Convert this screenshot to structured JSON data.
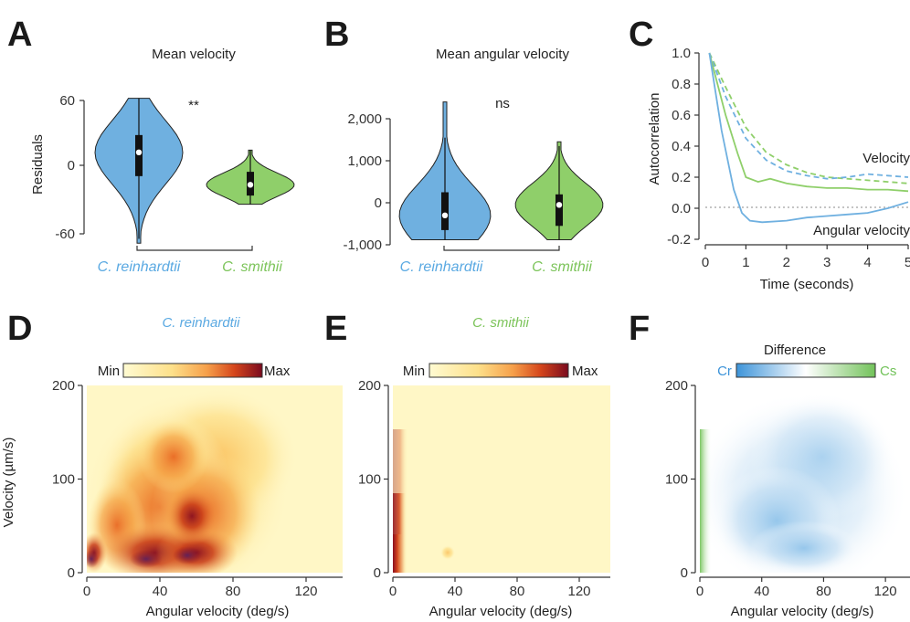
{
  "colors": {
    "reinhardtii": "#6fb0e0",
    "smithii": "#8fcf6a",
    "reinhardtii_text": "#5aa9e2",
    "smithii_text": "#7cc45a",
    "axis": "#333333"
  },
  "panels": {
    "A": {
      "letter": "A"
    },
    "B": {
      "letter": "B"
    },
    "C": {
      "letter": "C"
    },
    "D": {
      "letter": "D"
    },
    "E": {
      "letter": "E"
    },
    "F": {
      "letter": "F"
    }
  },
  "chart_data": [
    {
      "panel": "A",
      "type": "violin",
      "title": "Mean velocity",
      "ylabel": "Residuals",
      "ylim": [
        -60,
        60
      ],
      "yticks": [
        "60",
        "0",
        "-60"
      ],
      "categories": [
        "C. reinhardtii",
        "C. smithii"
      ],
      "significance": "**",
      "series": [
        {
          "name": "C. reinhardtii",
          "median": 12,
          "q1": -10,
          "q3": 28,
          "whisker_low": -68,
          "whisker_high": 62,
          "min": -72,
          "max": 62
        },
        {
          "name": "C. smithii",
          "median": -18,
          "q1": -28,
          "q3": -6,
          "whisker_low": -36,
          "whisker_high": 14,
          "min": -36,
          "max": 14
        }
      ]
    },
    {
      "panel": "B",
      "type": "violin",
      "title": "Mean angular velocity",
      "ylim": [
        -1000,
        2400
      ],
      "yticks": [
        "2,000",
        "1,000",
        "0",
        "-1,000"
      ],
      "categories": [
        "C. reinhardtii",
        "C. smithii"
      ],
      "significance": "ns",
      "series": [
        {
          "name": "C. reinhardtii",
          "median": -300,
          "q1": -650,
          "q3": 250,
          "whisker_low": -880,
          "whisker_high": 1550,
          "min": -880,
          "max": 2400
        },
        {
          "name": "C. smithii",
          "median": -50,
          "q1": -550,
          "q3": 200,
          "whisker_low": -880,
          "whisker_high": 1350,
          "min": -880,
          "max": 1450
        }
      ]
    },
    {
      "panel": "C",
      "type": "line",
      "xlabel": "Time (seconds)",
      "ylabel": "Autocorrelation",
      "xlim": [
        0,
        5
      ],
      "ylim": [
        -0.2,
        1.0
      ],
      "xticks": [
        "0",
        "1",
        "2",
        "3",
        "4",
        "5"
      ],
      "yticks": [
        "1.0",
        "0.8",
        "0.6",
        "0.4",
        "0.2",
        "0.0",
        "-0.2"
      ],
      "annotations": [
        "Velocity",
        "Angular velocity"
      ],
      "series": [
        {
          "group": "velocity",
          "species": "smithii",
          "dashed": true,
          "x": [
            0.1,
            0.5,
            1,
            1.5,
            2,
            2.5,
            3,
            3.5,
            4,
            4.5,
            5
          ],
          "y": [
            1.0,
            0.78,
            0.52,
            0.36,
            0.28,
            0.23,
            0.2,
            0.19,
            0.18,
            0.17,
            0.16
          ]
        },
        {
          "group": "velocity",
          "species": "reinhardtii",
          "dashed": true,
          "x": [
            0.1,
            0.5,
            1,
            1.5,
            2,
            2.5,
            3,
            3.5,
            4,
            4.5,
            5
          ],
          "y": [
            1.0,
            0.72,
            0.45,
            0.31,
            0.24,
            0.21,
            0.19,
            0.2,
            0.22,
            0.21,
            0.2
          ]
        },
        {
          "group": "angular",
          "species": "smithii",
          "dashed": false,
          "x": [
            0.1,
            0.5,
            0.8,
            1.0,
            1.3,
            1.6,
            2,
            2.5,
            3,
            3.5,
            4,
            4.5,
            5
          ],
          "y": [
            1.0,
            0.6,
            0.35,
            0.2,
            0.17,
            0.19,
            0.16,
            0.14,
            0.13,
            0.13,
            0.12,
            0.12,
            0.11
          ]
        },
        {
          "group": "angular",
          "species": "reinhardtii",
          "dashed": false,
          "x": [
            0.1,
            0.4,
            0.7,
            0.9,
            1.1,
            1.4,
            2,
            2.5,
            3,
            3.5,
            4,
            4.5,
            5
          ],
          "y": [
            1.0,
            0.5,
            0.12,
            -0.03,
            -0.08,
            -0.09,
            -0.08,
            -0.06,
            -0.05,
            -0.04,
            -0.03,
            0.0,
            0.04
          ]
        }
      ]
    },
    {
      "panel": "D",
      "type": "heatmap",
      "title": "C. reinhardtii",
      "colorbar": {
        "min_label": "Min",
        "max_label": "Max"
      },
      "xlabel": "Angular velocity (deg/s)",
      "ylabel": "Velocity (µm/s)",
      "xlim": [
        0,
        140
      ],
      "ylim": [
        0,
        200
      ],
      "xticks": [
        "0",
        "40",
        "80",
        "120"
      ],
      "yticks": [
        "200",
        "100",
        "0"
      ]
    },
    {
      "panel": "E",
      "type": "heatmap",
      "title": "C. smithii",
      "colorbar": {
        "min_label": "Min",
        "max_label": "Max"
      },
      "xlabel": "Angular velocity (deg/s)",
      "xlim": [
        0,
        140
      ],
      "ylim": [
        0,
        200
      ],
      "xticks": [
        "0",
        "40",
        "80",
        "120"
      ],
      "yticks": [
        "200",
        "100",
        "0"
      ]
    },
    {
      "panel": "F",
      "type": "heatmap",
      "title": "Difference",
      "colorbar": {
        "min_label": "Cr",
        "max_label": "Cs"
      },
      "xlabel": "Angular velocity (deg/s)",
      "xlim": [
        0,
        140
      ],
      "ylim": [
        0,
        200
      ],
      "xticks": [
        "0",
        "40",
        "80",
        "120"
      ],
      "yticks": [
        "200",
        "100",
        "0"
      ]
    }
  ]
}
